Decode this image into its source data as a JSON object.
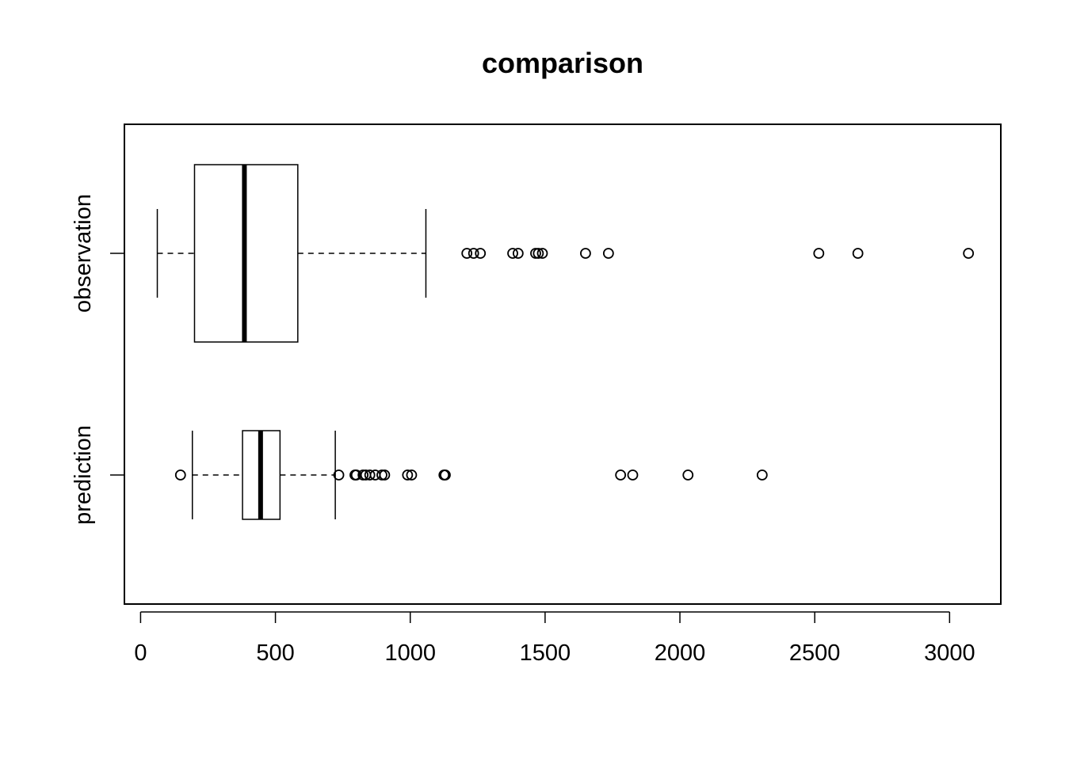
{
  "chart_data": {
    "type": "boxplot",
    "orientation": "horizontal",
    "title": "comparison",
    "xlim": [
      -60,
      3190
    ],
    "x_ticks": [
      0,
      500,
      1000,
      1500,
      2000,
      2500,
      3000
    ],
    "x_tick_labels": [
      "0",
      "500",
      "1000",
      "1500",
      "2000",
      "2500",
      "3000"
    ],
    "groups": [
      {
        "name": "observation",
        "whisker_low": 62,
        "q1": 200,
        "median": 385,
        "q3": 583,
        "whisker_high": 1058,
        "outliers": [
          1210,
          1235,
          1260,
          1380,
          1400,
          1465,
          1475,
          1490,
          1650,
          1735,
          2515,
          2660,
          3070
        ]
      },
      {
        "name": "prediction",
        "whisker_low": 192,
        "q1": 378,
        "median": 445,
        "q3": 517,
        "whisker_high": 722,
        "outliers": [
          148,
          735,
          795,
          800,
          825,
          835,
          850,
          870,
          895,
          905,
          990,
          1005,
          1125,
          1130,
          1780,
          1825,
          2030,
          2305
        ]
      }
    ]
  }
}
